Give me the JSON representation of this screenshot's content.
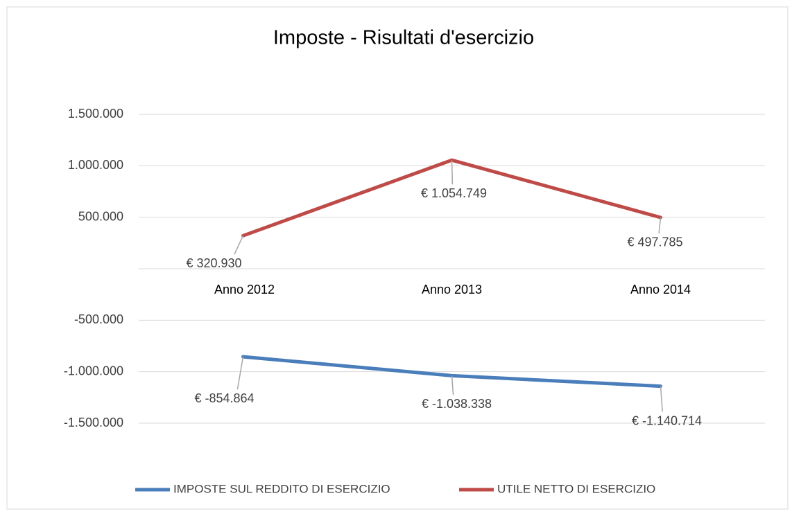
{
  "chart_data": {
    "type": "line",
    "title": "Imposte - Risultati d'esercizio",
    "categories": [
      "Anno 2012",
      "Anno 2013",
      "Anno 2014"
    ],
    "series": [
      {
        "name": "IMPOSTE SUL REDDITO DI ESERCIZIO",
        "color": "#4a7ebb",
        "values": [
          -854864,
          -1038338,
          -1140714
        ],
        "value_labels": [
          "€ -854.864",
          "€ -1.038.338",
          "€ -1.140.714"
        ]
      },
      {
        "name": "UTILE NETTO DI ESERCIZIO",
        "color": "#be4b48",
        "values": [
          320930,
          1054749,
          497785
        ],
        "value_labels": [
          "€ 320.930",
          "€ 1.054.749",
          "€ 497.785"
        ]
      }
    ],
    "ylim": [
      -1500000,
      1500000
    ],
    "yticks": [
      {
        "value": -1500000,
        "label": "-1.500.000"
      },
      {
        "value": -1000000,
        "label": "-1.000.000"
      },
      {
        "value": -500000,
        "label": "-500.000"
      },
      {
        "value": 500000,
        "label": "500.000"
      },
      {
        "value": 1000000,
        "label": "1.000.000"
      },
      {
        "value": 1500000,
        "label": "1.500.000"
      }
    ],
    "grid": true,
    "legend": "bottom"
  }
}
